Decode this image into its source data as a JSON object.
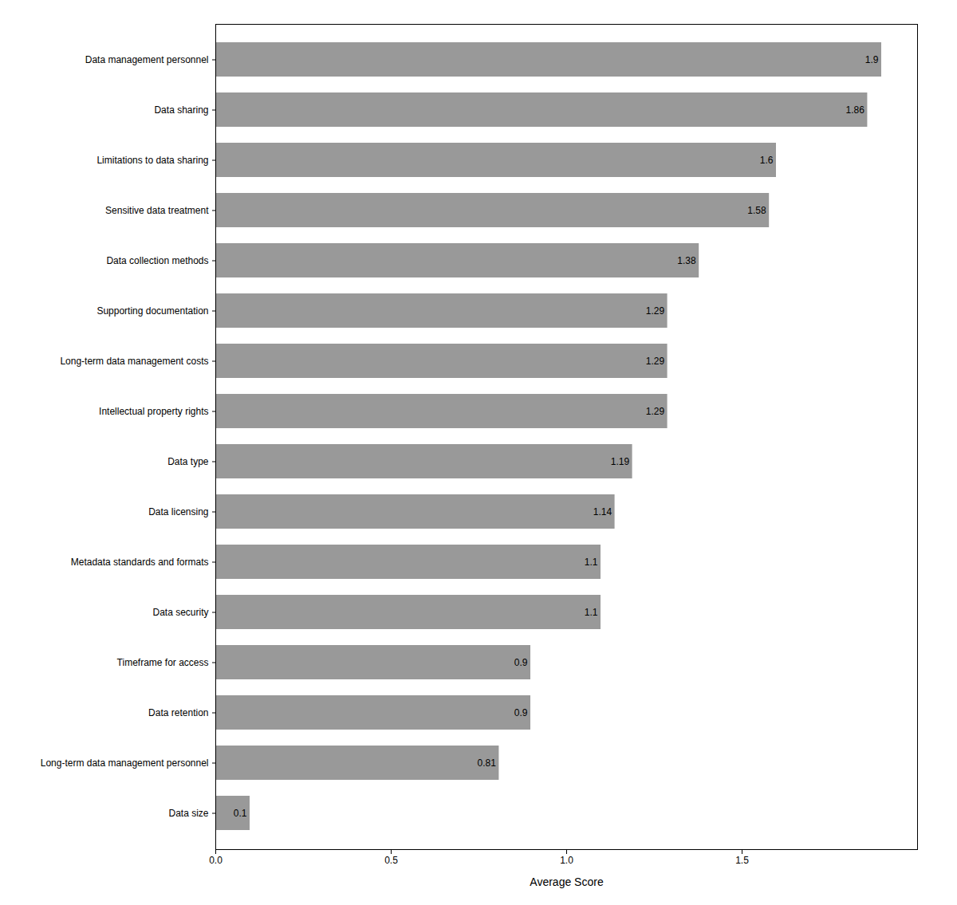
{
  "chart_data": {
    "type": "bar",
    "orientation": "horizontal",
    "categories": [
      "Data size",
      "Long-term data management personnel",
      "Data retention",
      "Timeframe for access",
      "Data security",
      "Metadata standards and formats",
      "Data licensing",
      "Data type",
      "Intellectual property rights",
      "Long-term data management costs",
      "Supporting documentation",
      "Data collection methods",
      "Sensitive data treatment",
      "Limitations to data sharing",
      "Data sharing",
      "Data management personnel"
    ],
    "values": [
      0.1,
      0.81,
      0.9,
      0.9,
      1.1,
      1.1,
      1.14,
      1.19,
      1.29,
      1.29,
      1.29,
      1.38,
      1.58,
      1.6,
      1.86,
      1.9
    ],
    "color": "#999999",
    "xlabel": "Average Score",
    "xlim": [
      0,
      2.0
    ],
    "xticks": [
      {
        "value": 0,
        "label": "0.0"
      },
      0.5,
      {
        "value": 1,
        "label": "1.0"
      },
      1.5
    ],
    "data_labels": true,
    "grid": false
  }
}
